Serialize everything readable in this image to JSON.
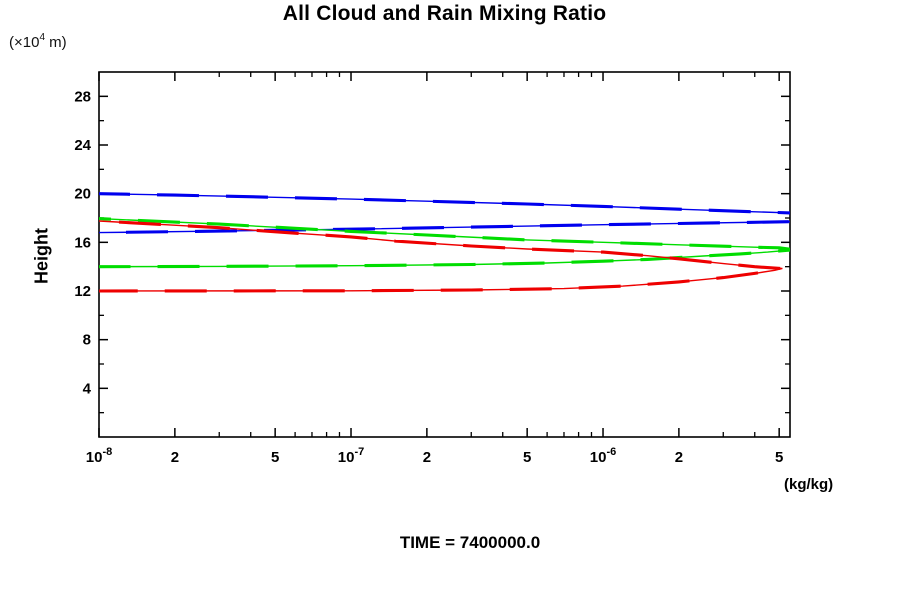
{
  "header": {
    "title": "All Cloud and Rain Mixing Ratio"
  },
  "footer": {
    "caption": "TIME = 7400000.0"
  },
  "chart_data": {
    "type": "line",
    "title": "All Cloud and Rain Mixing Ratio",
    "xlabel": "(kg/kg)",
    "ylabel": "Height",
    "y_unit": {
      "prefix": "(×10",
      "exp": "4",
      "suffix": " m)"
    },
    "x_scale": "log",
    "xlim": [
      1e-08,
      5.52e-06
    ],
    "ylim": [
      0,
      30
    ],
    "grid": false,
    "legend": "none",
    "frame": "box-with-mirrored-ticks",
    "x_major_ticks": [
      {
        "v": 1e-08,
        "label": "10",
        "exp": "-8"
      },
      {
        "v": 2e-08,
        "label": "2"
      },
      {
        "v": 5e-08,
        "label": "5"
      },
      {
        "v": 1e-07,
        "label": "10",
        "exp": "-7"
      },
      {
        "v": 2e-07,
        "label": "2"
      },
      {
        "v": 5e-07,
        "label": "5"
      },
      {
        "v": 1e-06,
        "label": "10",
        "exp": "-6"
      },
      {
        "v": 2e-06,
        "label": "2"
      },
      {
        "v": 5e-06,
        "label": "5"
      }
    ],
    "x_minor_ticks": [
      3e-08,
      4e-08,
      6e-08,
      7e-08,
      8e-08,
      9e-08,
      3e-07,
      4e-07,
      6e-07,
      7e-07,
      8e-07,
      9e-07,
      3e-06,
      4e-06
    ],
    "y_major_ticks": [
      {
        "v": 4,
        "label": "4"
      },
      {
        "v": 8,
        "label": "8"
      },
      {
        "v": 12,
        "label": "12"
      },
      {
        "v": 16,
        "label": "16"
      },
      {
        "v": 20,
        "label": "20"
      },
      {
        "v": 24,
        "label": "24"
      },
      {
        "v": 28,
        "label": "28"
      }
    ],
    "y_minor_ticks": [
      2,
      6,
      10,
      14,
      18,
      22,
      26
    ],
    "series": [
      {
        "name": "blue-profile",
        "color": "#0000ee",
        "branches": [
          [
            [
              1e-08,
              20.0
            ],
            [
              2e-08,
              19.88
            ],
            [
              5e-08,
              19.7
            ],
            [
              1e-07,
              19.55
            ],
            [
              2e-07,
              19.38
            ],
            [
              5e-07,
              19.15
            ],
            [
              1e-06,
              18.95
            ],
            [
              2e-06,
              18.72
            ],
            [
              3.5e-06,
              18.55
            ],
            [
              5.52e-06,
              18.42
            ]
          ],
          [
            [
              1e-08,
              16.8
            ],
            [
              3e-08,
              16.92
            ],
            [
              1e-07,
              17.08
            ],
            [
              3e-07,
              17.25
            ],
            [
              1e-06,
              17.45
            ],
            [
              2.5e-06,
              17.58
            ],
            [
              5.52e-06,
              17.7
            ]
          ]
        ]
      },
      {
        "name": "green-profile",
        "color": "#00dd00",
        "branches": [
          [
            [
              1e-08,
              17.95
            ],
            [
              3e-08,
              17.5
            ],
            [
              6e-08,
              17.15
            ],
            [
              1e-07,
              16.9
            ],
            [
              2e-07,
              16.6
            ],
            [
              5e-07,
              16.2
            ],
            [
              1e-06,
              16.0
            ],
            [
              2e-06,
              15.8
            ],
            [
              3e-06,
              15.68
            ],
            [
              4e-06,
              15.6
            ],
            [
              5e-06,
              15.55
            ],
            [
              5.45e-06,
              15.45
            ],
            [
              5.45e-06,
              15.35
            ],
            [
              4.5e-06,
              15.2
            ],
            [
              3.5e-06,
              15.05
            ],
            [
              2.5e-06,
              14.88
            ],
            [
              1.5e-06,
              14.6
            ],
            [
              1e-06,
              14.45
            ],
            [
              6e-07,
              14.3
            ],
            [
              3e-07,
              14.18
            ],
            [
              1e-07,
              14.08
            ],
            [
              3e-08,
              14.02
            ],
            [
              1e-08,
              14.0
            ]
          ]
        ]
      },
      {
        "name": "red-profile",
        "color": "#ee0000",
        "branches": [
          [
            [
              1e-08,
              17.75
            ],
            [
              3e-08,
              17.2
            ],
            [
              6e-08,
              16.75
            ],
            [
              1e-07,
              16.45
            ],
            [
              1.5e-07,
              16.1
            ],
            [
              3e-07,
              15.7
            ],
            [
              5e-07,
              15.45
            ],
            [
              1e-06,
              15.2
            ],
            [
              1.5e-06,
              14.9
            ],
            [
              2e-06,
              14.65
            ],
            [
              3e-06,
              14.25
            ],
            [
              4e-06,
              14.0
            ],
            [
              4.8e-06,
              13.88
            ],
            [
              5.15e-06,
              13.85
            ],
            [
              4.8e-06,
              13.7
            ],
            [
              4e-06,
              13.45
            ],
            [
              3e-06,
              13.1
            ],
            [
              2e-06,
              12.75
            ],
            [
              1.2e-06,
              12.4
            ],
            [
              7e-07,
              12.2
            ],
            [
              3e-07,
              12.08
            ],
            [
              1e-07,
              12.02
            ],
            [
              1e-08,
              12.0
            ]
          ]
        ]
      }
    ]
  },
  "colors": {
    "axis": "#000000",
    "background": "#ffffff"
  }
}
